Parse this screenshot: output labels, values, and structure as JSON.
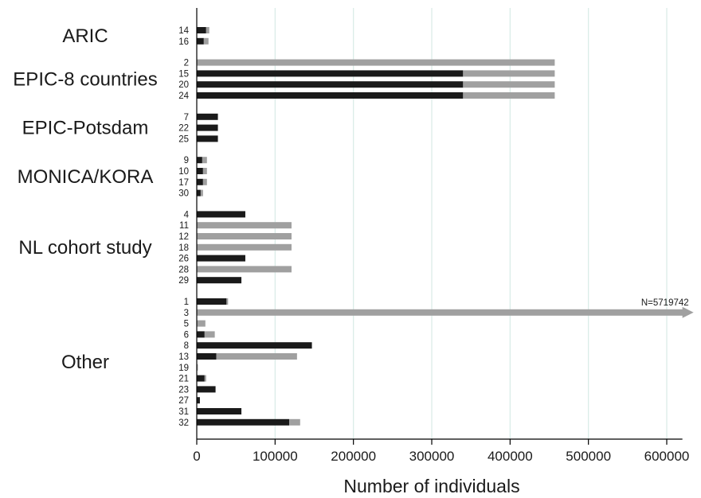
{
  "chart_data": {
    "type": "bar",
    "orientation": "horizontal",
    "xlabel": "Number of individuals",
    "xlim": [
      0,
      620000
    ],
    "xticks": [
      0,
      100000,
      200000,
      300000,
      400000,
      500000,
      600000
    ],
    "xtick_labels": [
      "0",
      "100000",
      "200000",
      "300000",
      "400000",
      "500000",
      "600000"
    ],
    "grid": "vertical",
    "stacked": true,
    "colors": {
      "dark": "#1a1a1a",
      "light": "#a0a0a0",
      "grid": "#d8ebe6",
      "axis": "#000000"
    },
    "groups": [
      {
        "name": "ARIC",
        "rows": [
          {
            "label": "14",
            "dark": 12000,
            "light": 4000
          },
          {
            "label": "16",
            "dark": 9000,
            "light": 6000
          }
        ]
      },
      {
        "name": "EPIC-8 countries",
        "rows": [
          {
            "label": "2",
            "dark": 0,
            "light": 457000
          },
          {
            "label": "15",
            "dark": 340000,
            "light": 117000
          },
          {
            "label": "20",
            "dark": 340000,
            "light": 117000
          },
          {
            "label": "24",
            "dark": 340000,
            "light": 117000
          }
        ]
      },
      {
        "name": "EPIC-Potsdam",
        "rows": [
          {
            "label": "7",
            "dark": 27000,
            "light": 0
          },
          {
            "label": "22",
            "dark": 27000,
            "light": 0
          },
          {
            "label": "25",
            "dark": 27000,
            "light": 0
          }
        ]
      },
      {
        "name": "MONICA/KORA",
        "rows": [
          {
            "label": "9",
            "dark": 7000,
            "light": 6000
          },
          {
            "label": "10",
            "dark": 8000,
            "light": 5000
          },
          {
            "label": "17",
            "dark": 8000,
            "light": 5000
          },
          {
            "label": "30",
            "dark": 5000,
            "light": 3000
          }
        ]
      },
      {
        "name": "NL cohort study",
        "rows": [
          {
            "label": "4",
            "dark": 62000,
            "light": 0
          },
          {
            "label": "11",
            "dark": 0,
            "light": 121000
          },
          {
            "label": "12",
            "dark": 0,
            "light": 121000
          },
          {
            "label": "18",
            "dark": 0,
            "light": 121000
          },
          {
            "label": "26",
            "dark": 62000,
            "light": 0
          },
          {
            "label": "28",
            "dark": 0,
            "light": 121000
          },
          {
            "label": "29",
            "dark": 57000,
            "light": 0
          }
        ]
      },
      {
        "name": "Other",
        "rows": [
          {
            "label": "1",
            "dark": 38000,
            "light": 2000
          },
          {
            "label": "3",
            "dark": 0,
            "light": 5719742,
            "truncated": true,
            "annotation": "N=5719742"
          },
          {
            "label": "5",
            "dark": 0,
            "light": 11000
          },
          {
            "label": "6",
            "dark": 10000,
            "light": 13000
          },
          {
            "label": "8",
            "dark": 147000,
            "light": 0
          },
          {
            "label": "13",
            "dark": 25000,
            "light": 103000
          },
          {
            "label": "19",
            "dark": 0,
            "light": 1500
          },
          {
            "label": "21",
            "dark": 10000,
            "light": 2000
          },
          {
            "label": "23",
            "dark": 24000,
            "light": 0
          },
          {
            "label": "27",
            "dark": 4000,
            "light": 0
          },
          {
            "label": "31",
            "dark": 57000,
            "light": 0
          },
          {
            "label": "32",
            "dark": 118000,
            "light": 14000
          }
        ]
      }
    ]
  }
}
